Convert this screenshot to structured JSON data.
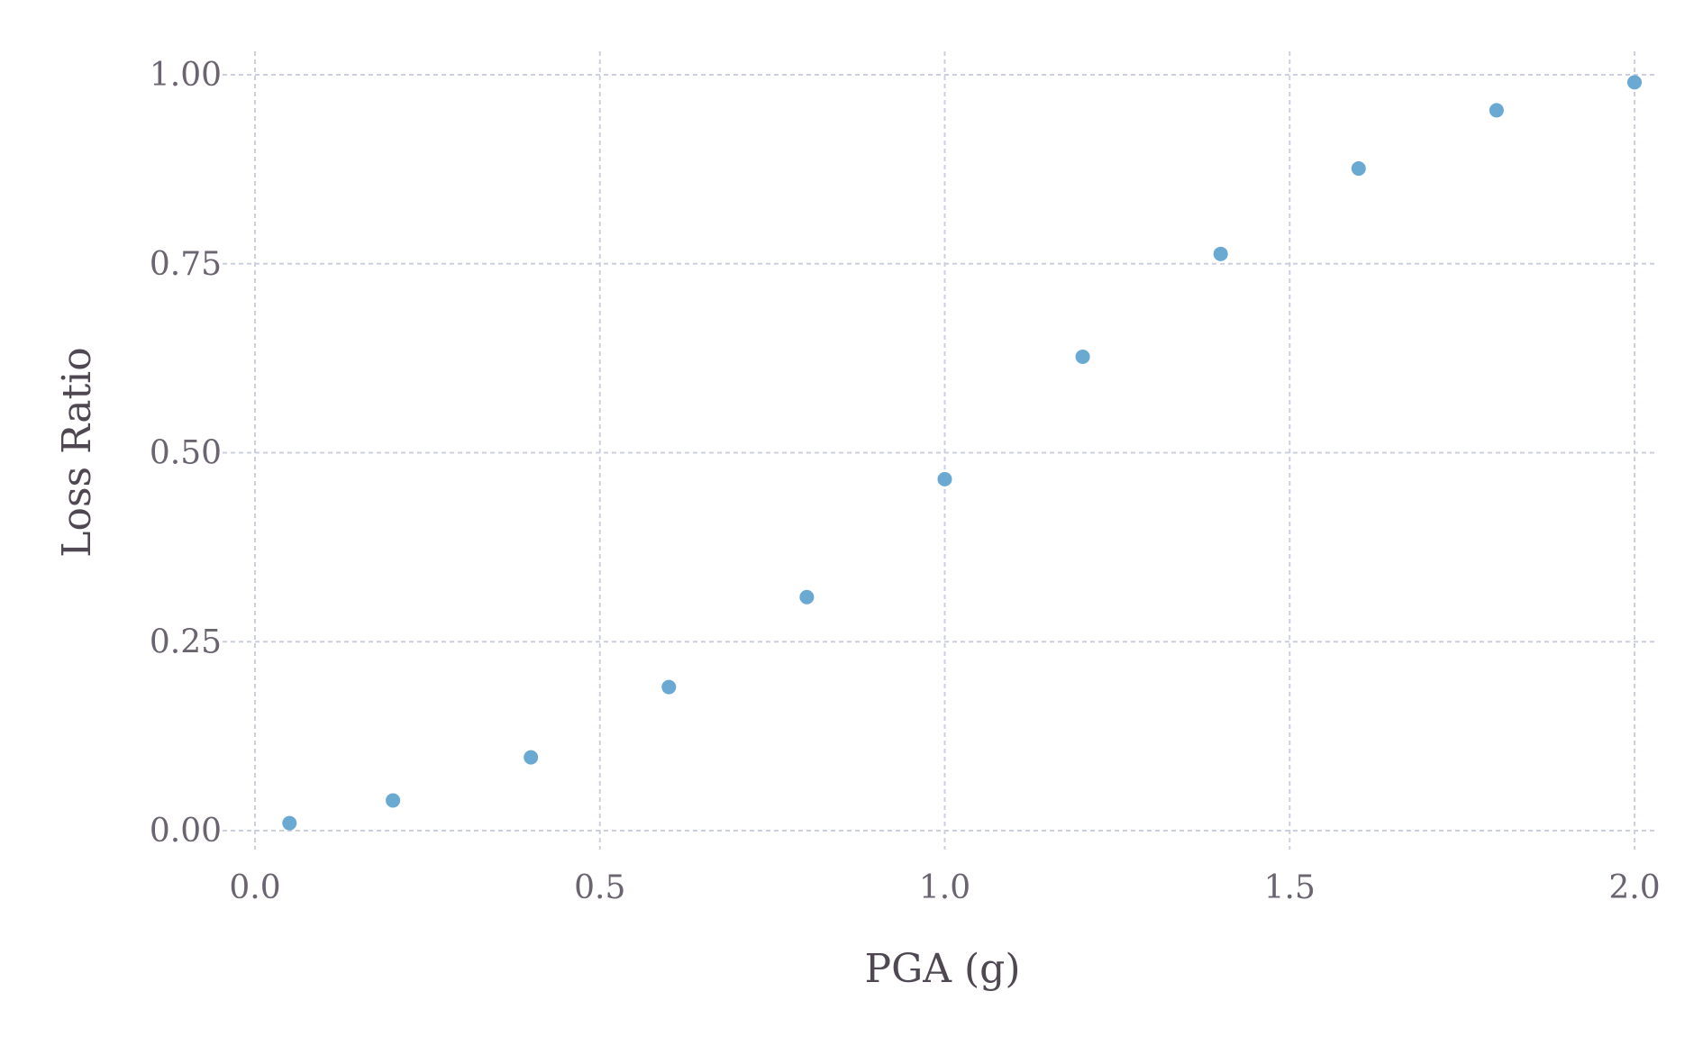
{
  "chart_data": {
    "type": "scatter",
    "title": "",
    "xlabel": "PGA (g)",
    "ylabel": "Loss Ratio",
    "xlim": [
      0.0,
      2.0
    ],
    "ylim": [
      0.0,
      1.0
    ],
    "x_ticks": [
      "0.0",
      "0.5",
      "1.0",
      "1.5",
      "2.0"
    ],
    "y_ticks": [
      "0.00",
      "0.25",
      "0.50",
      "0.75",
      "1.00"
    ],
    "grid": true,
    "marker_color": "#6aa9d2",
    "grid_color": "#cccfe0",
    "series": [
      {
        "x": [
          0.05,
          0.2,
          0.4,
          0.6,
          0.8,
          1.0,
          1.2,
          1.4,
          1.6,
          1.8,
          2.0
        ],
        "y": [
          0.01,
          0.04,
          0.097,
          0.19,
          0.309,
          0.465,
          0.627,
          0.763,
          0.876,
          0.953,
          0.99
        ]
      }
    ]
  }
}
